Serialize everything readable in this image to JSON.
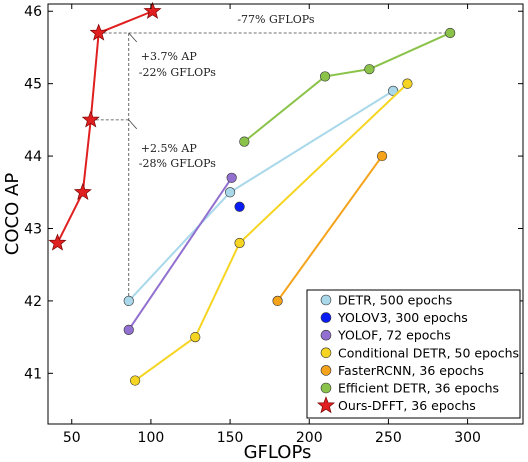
{
  "chart_data": {
    "type": "line",
    "xlabel": "GFLOPs",
    "ylabel": "COCO AP",
    "xlim": [
      35,
      335
    ],
    "ylim": [
      40.3,
      46.1
    ],
    "xticks": [
      50,
      100,
      150,
      200,
      250,
      300
    ],
    "yticks": [
      41,
      42,
      43,
      44,
      45,
      46
    ],
    "legend_position": "bottom-right",
    "series": [
      {
        "name": "DETR, 500 epochs",
        "color": "#a8d8ea",
        "marker": "circle",
        "x": [
          86,
          150,
          253
        ],
        "y": [
          42.0,
          43.5,
          44.9
        ]
      },
      {
        "name": "YOLOV3, 300 epochs",
        "color": "#0a1cf5",
        "marker": "circle",
        "x": [
          156
        ],
        "y": [
          43.3
        ]
      },
      {
        "name": "YOLOF, 72 epochs",
        "color": "#9270d0",
        "marker": "circle",
        "x": [
          86,
          151
        ],
        "y": [
          41.6,
          43.7
        ]
      },
      {
        "name": "Conditional DETR, 50 epochs",
        "color": "#f5d522",
        "marker": "circle",
        "x": [
          90,
          128,
          156,
          262
        ],
        "y": [
          40.9,
          41.5,
          42.8,
          45.0
        ]
      },
      {
        "name": "FasterRCNN, 36 epochs",
        "color": "#f5a31a",
        "marker": "circle",
        "x": [
          180,
          246
        ],
        "y": [
          42.0,
          44.0
        ]
      },
      {
        "name": "Efficient DETR, 36 epochs",
        "color": "#8bc34a",
        "marker": "circle",
        "x": [
          159,
          210,
          238,
          289
        ],
        "y": [
          44.2,
          45.1,
          45.2,
          45.7
        ]
      },
      {
        "name": "Ours-DFFT, 36 epochs",
        "color": "#e02020",
        "marker": "star",
        "x": [
          41,
          57,
          62,
          67,
          101
        ],
        "y": [
          42.8,
          43.5,
          44.5,
          45.7,
          46.0
        ]
      }
    ],
    "annotations": [
      {
        "text": "-77% GFLOPs"
      },
      {
        "text": "+3.7% AP"
      },
      {
        "text": "-22% GFLOPs"
      },
      {
        "text": "+2.5% AP"
      },
      {
        "text": "-28% GFLOPs"
      }
    ]
  }
}
